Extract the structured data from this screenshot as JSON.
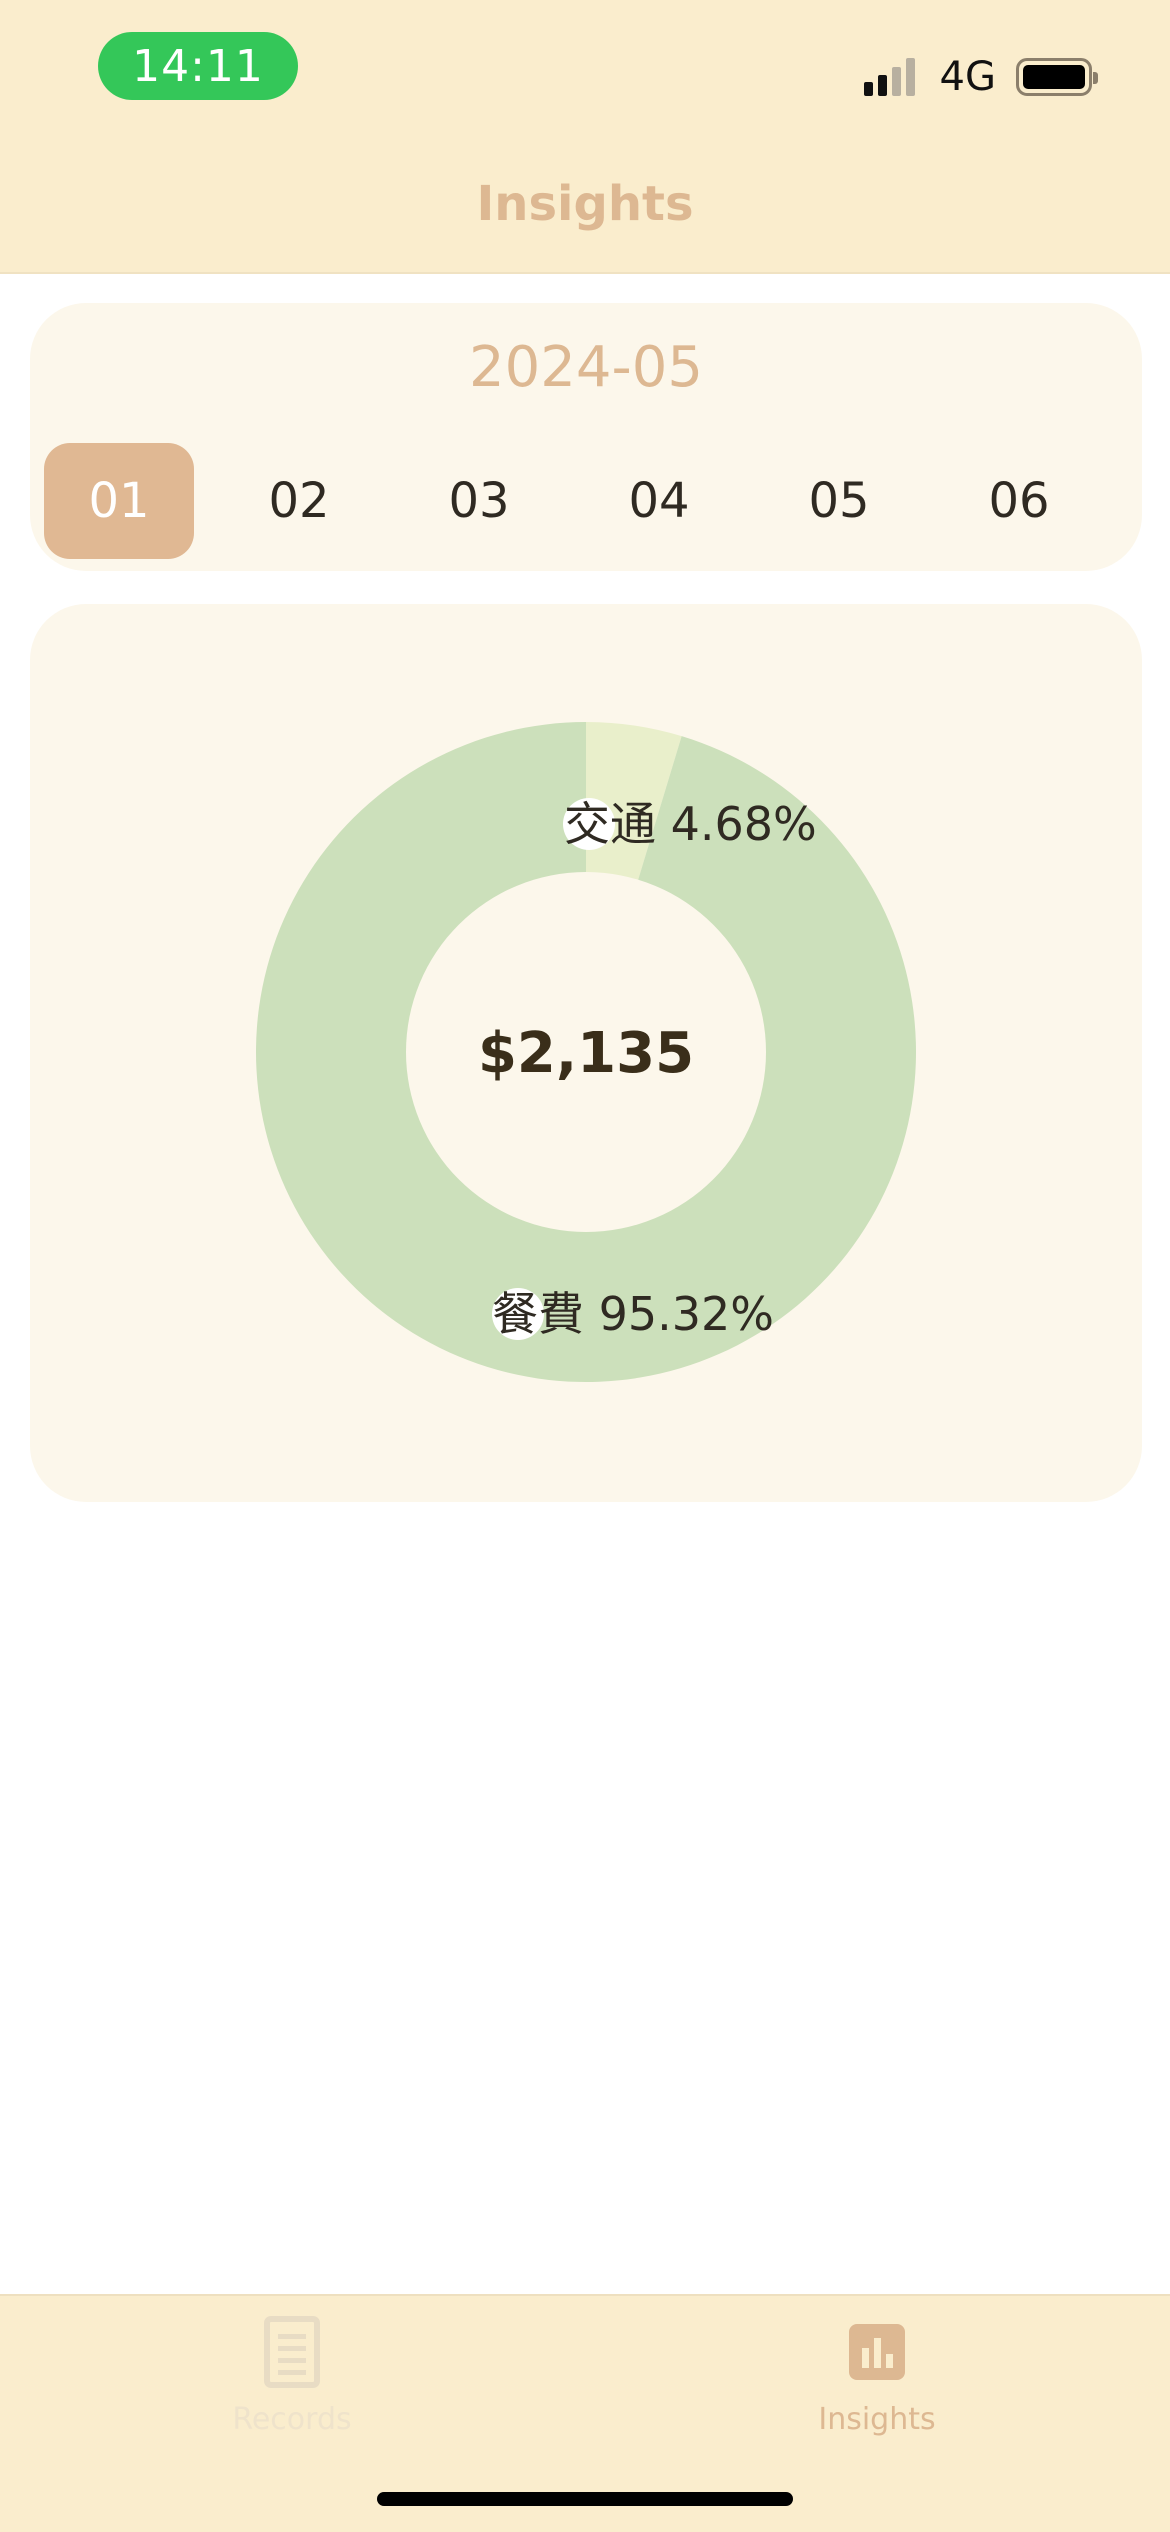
{
  "status_bar": {
    "time": "14:11",
    "network": "4G",
    "icons": [
      "signal-icon",
      "battery-icon"
    ]
  },
  "header": {
    "title": "Insights"
  },
  "month_selector": {
    "period": "2024-05",
    "tabs": [
      {
        "label": "01",
        "active": true
      },
      {
        "label": "02",
        "active": false
      },
      {
        "label": "03",
        "active": false
      },
      {
        "label": "04",
        "active": false
      },
      {
        "label": "05",
        "active": false
      },
      {
        "label": "06",
        "active": false
      }
    ]
  },
  "chart_data": {
    "type": "pie",
    "style": "donut",
    "center_label": "$2,135",
    "slices": [
      {
        "label": "交通 4.68%",
        "category": "交通",
        "percent": 4.68,
        "color": "#E9EFCB"
      },
      {
        "label": "餐費 95.32%",
        "category": "餐費",
        "percent": 95.32,
        "color": "#CCE0BB"
      }
    ]
  },
  "tab_bar": {
    "items": [
      {
        "label": "Records",
        "icon": "document-icon",
        "active": false
      },
      {
        "label": "Insights",
        "icon": "bar-chart-icon",
        "active": true
      }
    ]
  },
  "colors": {
    "header_bg": "#FAEDCD",
    "accent": "#DDB892",
    "card_bg": "#FCF7EB",
    "active_tab_bg": "#E0B893",
    "time_pill": "#34C759",
    "inactive_tab": "#E8DCC4"
  }
}
